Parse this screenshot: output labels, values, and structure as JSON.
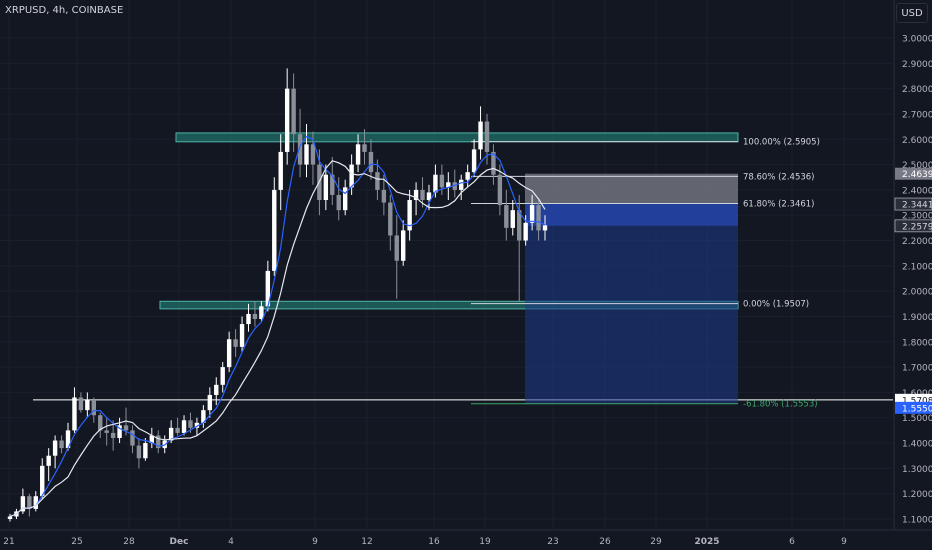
{
  "header": {
    "symbol_title": "XRPUSD, 4h, COINBASE",
    "currency": "USD"
  },
  "colors": {
    "background": "#131722",
    "up": "#ffffff",
    "down": "#8a8f98",
    "ma_fast": "#2962ff",
    "ma_slow": "#e6e9ef",
    "zone": "#1f6f68",
    "target_box": "#1e3a8a",
    "stop_box": "#7d8089",
    "label_blue": "#2962ff"
  },
  "chart_data": {
    "type": "candlestick",
    "y_ticks": [
      "3.0000",
      "2.9000",
      "2.8000",
      "2.7000",
      "2.6000",
      "2.5000",
      "2.4000",
      "2.3000",
      "2.2000",
      "2.1000",
      "2.0000",
      "1.9000",
      "1.8000",
      "1.7000",
      "1.6000",
      "1.5000",
      "1.4000",
      "1.3000",
      "1.2000",
      "1.1000"
    ],
    "x_ticks": [
      "21",
      "25",
      "28",
      "Dec",
      "4",
      "9",
      "12",
      "16",
      "19",
      "23",
      "26",
      "29",
      "2025",
      "6",
      "9"
    ],
    "x_tick_bold": [
      "Dec",
      "2025"
    ],
    "price_labels": [
      {
        "value": "2.4639",
        "price": 2.4639,
        "style": "gray"
      },
      {
        "value": "2.3441",
        "price": 2.3441,
        "style": "dark"
      },
      {
        "value": "2.2579",
        "price": 2.2579,
        "style": "dark"
      },
      {
        "value": "1.5708",
        "price": 1.5708,
        "style": "white"
      },
      {
        "value": "1.5550",
        "price": 1.555,
        "style": "blue"
      }
    ],
    "fib_levels": [
      {
        "label": "100.00% (2.5905)",
        "price": 2.5905
      },
      {
        "label": "78.60% (2.4536)",
        "price": 2.4536
      },
      {
        "label": "61.80% (2.3461)",
        "price": 2.3461
      },
      {
        "label": "0.00% (1.9507)",
        "price": 1.9507
      },
      {
        "label": "-61.80% (1.5553)",
        "price": 1.5553
      }
    ],
    "zones": [
      {
        "name": "resistance",
        "top": 2.625,
        "bottom": 2.59
      },
      {
        "name": "support",
        "top": 1.96,
        "bottom": 1.93
      }
    ],
    "horizontal_line": 1.5708,
    "position": {
      "stop": 2.4639,
      "entry": 2.3441,
      "entry_fill": 2.2579,
      "target": 1.555
    },
    "candles": [
      [
        1.1,
        1.12,
        1.09,
        1.11
      ],
      [
        1.11,
        1.14,
        1.1,
        1.13
      ],
      [
        1.13,
        1.22,
        1.12,
        1.19
      ],
      [
        1.19,
        1.2,
        1.11,
        1.14
      ],
      [
        1.14,
        1.21,
        1.13,
        1.19
      ],
      [
        1.19,
        1.34,
        1.18,
        1.31
      ],
      [
        1.31,
        1.38,
        1.25,
        1.35
      ],
      [
        1.35,
        1.43,
        1.3,
        1.41
      ],
      [
        1.41,
        1.43,
        1.36,
        1.38
      ],
      [
        1.38,
        1.48,
        1.37,
        1.45
      ],
      [
        1.45,
        1.62,
        1.44,
        1.58
      ],
      [
        1.58,
        1.6,
        1.52,
        1.53
      ],
      [
        1.53,
        1.6,
        1.5,
        1.57
      ],
      [
        1.57,
        1.58,
        1.48,
        1.51
      ],
      [
        1.51,
        1.52,
        1.42,
        1.45
      ],
      [
        1.45,
        1.5,
        1.39,
        1.44
      ],
      [
        1.44,
        1.49,
        1.37,
        1.42
      ],
      [
        1.42,
        1.5,
        1.4,
        1.47
      ],
      [
        1.47,
        1.54,
        1.43,
        1.45
      ],
      [
        1.45,
        1.47,
        1.36,
        1.39
      ],
      [
        1.39,
        1.42,
        1.3,
        1.34
      ],
      [
        1.34,
        1.42,
        1.33,
        1.4
      ],
      [
        1.4,
        1.46,
        1.38,
        1.43
      ],
      [
        1.43,
        1.45,
        1.36,
        1.38
      ],
      [
        1.38,
        1.43,
        1.36,
        1.41
      ],
      [
        1.41,
        1.49,
        1.4,
        1.46
      ],
      [
        1.46,
        1.5,
        1.43,
        1.44
      ],
      [
        1.44,
        1.51,
        1.43,
        1.49
      ],
      [
        1.49,
        1.52,
        1.44,
        1.46
      ],
      [
        1.46,
        1.5,
        1.43,
        1.48
      ],
      [
        1.48,
        1.55,
        1.46,
        1.53
      ],
      [
        1.53,
        1.62,
        1.5,
        1.59
      ],
      [
        1.59,
        1.66,
        1.55,
        1.63
      ],
      [
        1.63,
        1.72,
        1.6,
        1.7
      ],
      [
        1.7,
        1.84,
        1.68,
        1.81
      ],
      [
        1.81,
        1.85,
        1.74,
        1.78
      ],
      [
        1.78,
        1.9,
        1.76,
        1.87
      ],
      [
        1.87,
        1.95,
        1.84,
        1.91
      ],
      [
        1.91,
        1.96,
        1.86,
        1.89
      ],
      [
        1.89,
        1.96,
        1.88,
        1.94
      ],
      [
        1.94,
        2.12,
        1.92,
        2.08
      ],
      [
        2.08,
        2.45,
        2.06,
        2.4
      ],
      [
        2.4,
        2.62,
        2.32,
        2.55
      ],
      [
        2.55,
        2.88,
        2.5,
        2.8
      ],
      [
        2.8,
        2.86,
        2.55,
        2.62
      ],
      [
        2.62,
        2.72,
        2.45,
        2.5
      ],
      [
        2.5,
        2.66,
        2.45,
        2.58
      ],
      [
        2.58,
        2.63,
        2.42,
        2.5
      ],
      [
        2.5,
        2.56,
        2.3,
        2.36
      ],
      [
        2.36,
        2.5,
        2.32,
        2.46
      ],
      [
        2.46,
        2.53,
        2.34,
        2.38
      ],
      [
        2.38,
        2.45,
        2.28,
        2.32
      ],
      [
        2.32,
        2.44,
        2.3,
        2.41
      ],
      [
        2.41,
        2.54,
        2.38,
        2.5
      ],
      [
        2.5,
        2.62,
        2.47,
        2.58
      ],
      [
        2.58,
        2.64,
        2.5,
        2.55
      ],
      [
        2.55,
        2.6,
        2.44,
        2.47
      ],
      [
        2.47,
        2.52,
        2.36,
        2.4
      ],
      [
        2.4,
        2.46,
        2.3,
        2.35
      ],
      [
        2.35,
        2.38,
        2.16,
        2.22
      ],
      [
        2.22,
        2.3,
        1.97,
        2.12
      ],
      [
        2.12,
        2.28,
        2.1,
        2.24
      ],
      [
        2.24,
        2.4,
        2.2,
        2.36
      ],
      [
        2.36,
        2.43,
        2.3,
        2.4
      ],
      [
        2.4,
        2.45,
        2.33,
        2.36
      ],
      [
        2.36,
        2.42,
        2.32,
        2.39
      ],
      [
        2.39,
        2.5,
        2.37,
        2.46
      ],
      [
        2.46,
        2.5,
        2.38,
        2.41
      ],
      [
        2.41,
        2.47,
        2.36,
        2.43
      ],
      [
        2.43,
        2.48,
        2.37,
        2.4
      ],
      [
        2.4,
        2.46,
        2.36,
        2.44
      ],
      [
        2.44,
        2.5,
        2.41,
        2.47
      ],
      [
        2.47,
        2.6,
        2.45,
        2.56
      ],
      [
        2.56,
        2.73,
        2.52,
        2.67
      ],
      [
        2.67,
        2.7,
        2.5,
        2.55
      ],
      [
        2.55,
        2.58,
        2.42,
        2.46
      ],
      [
        2.46,
        2.5,
        2.3,
        2.34
      ],
      [
        2.34,
        2.4,
        2.2,
        2.25
      ],
      [
        2.25,
        2.36,
        2.22,
        2.32
      ],
      [
        2.32,
        2.38,
        1.96,
        2.2
      ],
      [
        2.2,
        2.3,
        2.18,
        2.27
      ],
      [
        2.27,
        2.38,
        2.24,
        2.34
      ],
      [
        2.34,
        2.36,
        2.2,
        2.24
      ],
      [
        2.24,
        2.3,
        2.2,
        2.26
      ]
    ]
  }
}
